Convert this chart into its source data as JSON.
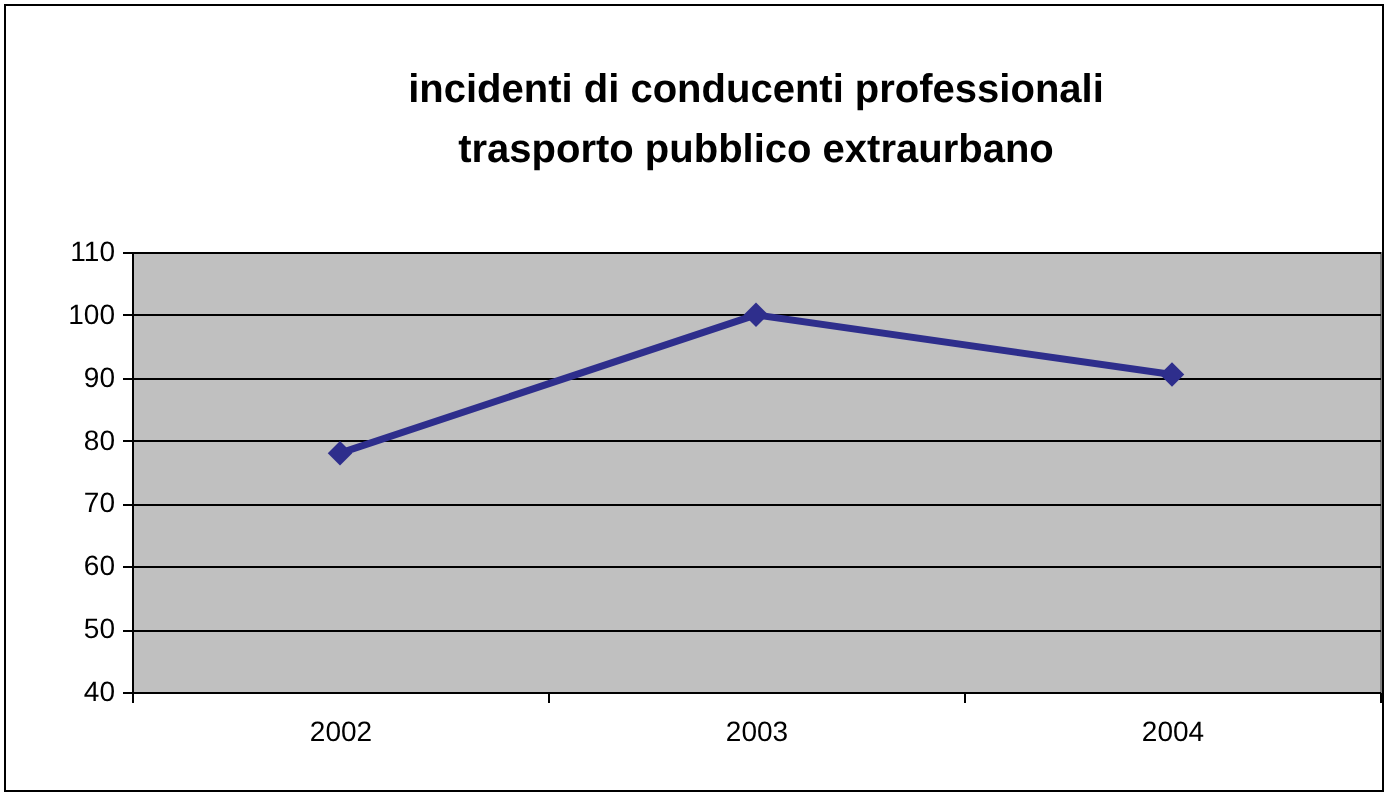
{
  "chart_data": {
    "type": "line",
    "title": "incidenti di conducenti professionali\ntrasporto pubblico extraurbano",
    "categories": [
      "2002",
      "2003",
      "2004"
    ],
    "series": [
      {
        "color": "#2e2e8c",
        "values": [
          78,
          100,
          90.5
        ]
      }
    ],
    "ylim": [
      40,
      110
    ],
    "yticks": [
      40,
      50,
      60,
      70,
      80,
      90,
      100,
      110
    ],
    "grid": "y",
    "marker": "diamond",
    "line_style": "solid"
  }
}
